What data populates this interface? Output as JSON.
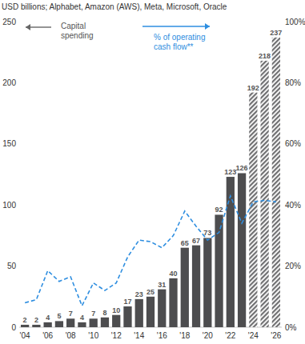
{
  "chart_data": {
    "type": "bar",
    "title": "USD billions; Alphabet, Amazon (AWS), Meta, Microsoft, Oracle",
    "categories": [
      "'04",
      null,
      "'06",
      null,
      "'08",
      null,
      "'10",
      null,
      "'12",
      null,
      "'14",
      null,
      "'16",
      null,
      "'18",
      null,
      "'20",
      null,
      "'22",
      null,
      "'24",
      null,
      "'26"
    ],
    "series": [
      {
        "name": "Capital spending",
        "type": "bar",
        "color": "#4d4d4f",
        "colors": [
          "#4d4d4f",
          "#4d4d4f",
          "#4d4d4f",
          "#4d4d4f",
          "#4d4d4f",
          "#4d4d4f",
          "#4d4d4f",
          "#4d4d4f",
          "#4d4d4f",
          "#4d4d4f",
          "#4d4d4f",
          "#4d4d4f",
          "#4d4d4f",
          "#4d4d4f",
          "#4d4d4f",
          "#4d4d4f",
          "#4d4d4f",
          "#4d4d4f",
          "#4d4d4f",
          "#4d4d4f",
          "#6f6f71",
          "#6f6f71",
          "#6f6f71"
        ],
        "data_labels": true,
        "values": [
          2,
          2,
          4,
          5,
          7,
          4,
          7,
          8,
          10,
          17,
          23,
          25,
          31,
          40,
          65,
          67,
          73,
          92,
          123,
          126,
          192,
          218,
          237
        ]
      },
      {
        "name": "% of operating cash flow**",
        "type": "line",
        "axis": "y2",
        "color": "#2e8ee0",
        "line_style": "dashed",
        "values": [
          8,
          9,
          18.5,
          15,
          16.5,
          7,
          14.5,
          12,
          14.5,
          23,
          28.5,
          28,
          26,
          30,
          38,
          33,
          28.5,
          31,
          43,
          34,
          41,
          41.5,
          41
        ]
      }
    ],
    "ylim": [
      0,
      250
    ],
    "yticks": [
      0,
      50,
      100,
      150,
      200,
      250
    ],
    "y2lim": [
      0,
      100
    ],
    "y2ticks": [
      {
        "value": 0,
        "label": "0%"
      },
      {
        "value": 20,
        "label": "20%"
      },
      {
        "value": 40,
        "label": "40%"
      },
      {
        "value": 60,
        "label": "60%"
      },
      {
        "value": 80,
        "label": "80%"
      },
      {
        "value": 100,
        "label": "100%"
      }
    ],
    "grid": false
  }
}
